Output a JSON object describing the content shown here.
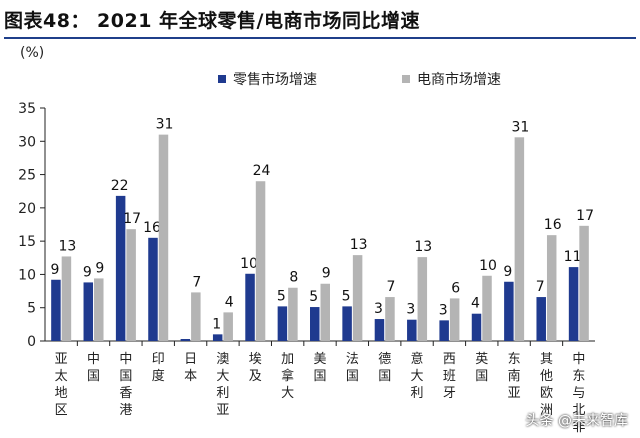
{
  "header": {
    "title": "图表48：  2021 年全球零售/电商市场同比增速"
  },
  "watermark": "头条 @未来智库",
  "chart_data": {
    "type": "bar",
    "ylabel": "(%)",
    "ylim": [
      0,
      35
    ],
    "yticks": [
      0,
      5,
      10,
      15,
      20,
      25,
      30,
      35
    ],
    "legend_position": "top",
    "categories": [
      "亚太地区",
      "中国",
      "中国香港",
      "印度",
      "日本",
      "澳大利亚",
      "埃及",
      "加拿大",
      "美国",
      "法国",
      "德国",
      "意大利",
      "西班牙",
      "英国",
      "东南亚",
      "其他欧洲",
      "中东与北非"
    ],
    "series": [
      {
        "name": "零售市场增速",
        "color": "#1f3a8f",
        "values": [
          9.2,
          8.8,
          21.8,
          15.5,
          0.3,
          1.0,
          10.1,
          5.2,
          5.1,
          5.2,
          3.3,
          3.2,
          3.1,
          4.1,
          8.9,
          6.6,
          11.1
        ],
        "labels": [
          "9",
          "9",
          "22",
          "16",
          "",
          "1",
          "10",
          "5",
          "5",
          "5",
          "3",
          "3",
          "3",
          "4",
          "9",
          "7",
          "11"
        ]
      },
      {
        "name": "电商市场增速",
        "color": "#b4b4b4",
        "values": [
          12.7,
          9.4,
          16.8,
          31.0,
          7.3,
          4.3,
          24.0,
          8.0,
          8.6,
          12.9,
          6.6,
          12.6,
          6.4,
          9.8,
          30.6,
          15.9,
          17.3
        ],
        "labels": [
          "13",
          "9",
          "17",
          "31",
          "7",
          "4",
          "24",
          "8",
          "9",
          "13",
          "7",
          "13",
          "6",
          "10",
          "31",
          "16",
          "17"
        ]
      }
    ]
  }
}
